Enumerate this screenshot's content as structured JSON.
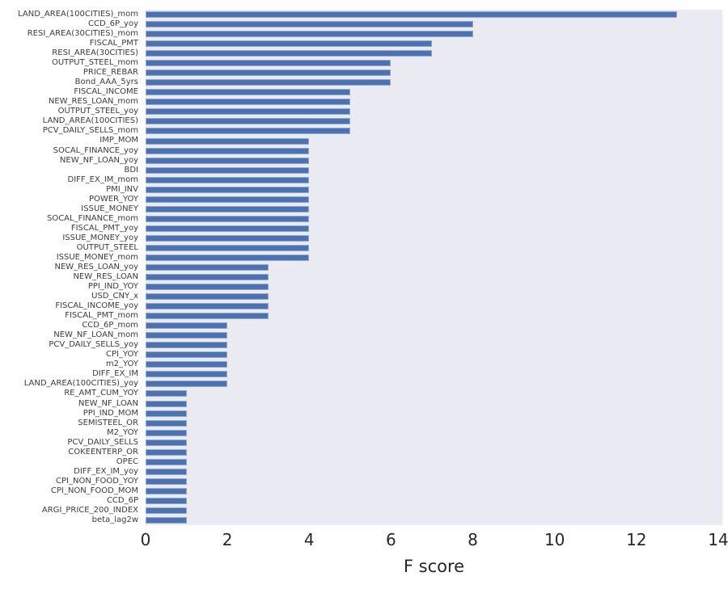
{
  "chart_data": {
    "type": "bar",
    "orientation": "horizontal",
    "title": "",
    "xlabel": "F score",
    "ylabel": "",
    "legend_position": "none",
    "grid": false,
    "xlim": [
      0,
      14.1
    ],
    "x_ticks": [
      "0",
      "2",
      "4",
      "6",
      "8",
      "10",
      "12",
      "14"
    ],
    "x_tick_values": [
      0,
      2,
      4,
      6,
      8,
      10,
      12,
      14
    ],
    "categories": [
      "LAND_AREA(100CITIES)_mom",
      "CCD_6P_yoy",
      "RESI_AREA(30CITIES)_mom",
      "FISCAL_PMT",
      "RESI_AREA(30CITIES)",
      "OUTPUT_STEEL_mom",
      "PRICE_REBAR",
      "Bond_AAA_5yrs",
      "FISCAL_INCOME",
      "NEW_RES_LOAN_mom",
      "OUTPUT_STEEL_yoy",
      "LAND_AREA(100CITIES)",
      "PCV_DAILY_SELLS_mom",
      "IMP_MOM",
      "SOCAL_FINANCE_yoy",
      "NEW_NF_LOAN_yoy",
      "BDI",
      "DIFF_EX_IM_mom",
      "PMI_INV",
      "POWER_YOY",
      "ISSUE_MONEY",
      "SOCAL_FINANCE_mom",
      "FISCAL_PMT_yoy",
      "ISSUE_MONEY_yoy",
      "OUTPUT_STEEL",
      "ISSUE_MONEY_mom",
      "NEW_RES_LOAN_yoy",
      "NEW_RES_LOAN",
      "PPI_IND_YOY",
      "USD_CNY_x",
      "FISCAL_INCOME_yoy",
      "FISCAL_PMT_mom",
      "CCD_6P_mom",
      "NEW_NF_LOAN_mom",
      "PCV_DAILY_SELLS_yoy",
      "CPI_YOY",
      "m2_YOY",
      "DIFF_EX_IM",
      "LAND_AREA(100CITIES)_yoy",
      "RE_AMT_CUM_YOY",
      "NEW_NF_LOAN",
      "PPI_IND_MOM",
      "SEMISTEEL_OR",
      "M2_YOY",
      "PCV_DAILY_SELLS",
      "COKEENTERP_OR",
      "OPEC",
      "DIFF_EX_IM_yoy",
      "CPI_NON_FOOD_YOY",
      "CPI_NON_FOOD_MOM",
      "CCD_6P",
      "ARGI_PRICE_200_INDEX",
      "beta_lag2w"
    ],
    "values": [
      13,
      8,
      8,
      7,
      7,
      6,
      6,
      6,
      5,
      5,
      5,
      5,
      5,
      4,
      4,
      4,
      4,
      4,
      4,
      4,
      4,
      4,
      4,
      4,
      4,
      4,
      3,
      3,
      3,
      3,
      3,
      3,
      2,
      2,
      2,
      2,
      2,
      2,
      2,
      1,
      1,
      1,
      1,
      1,
      1,
      1,
      1,
      1,
      1,
      1,
      1,
      1,
      1
    ],
    "colors": {
      "bar_fill": "#4c72b0",
      "bar_edge": "#93a8cf",
      "plot_background": "#eaeaf2",
      "figure_background": "#ffffff",
      "x_tick_label": "#262626",
      "y_tick_label": "#3c3c3c",
      "axis_label": "#262626"
    }
  }
}
